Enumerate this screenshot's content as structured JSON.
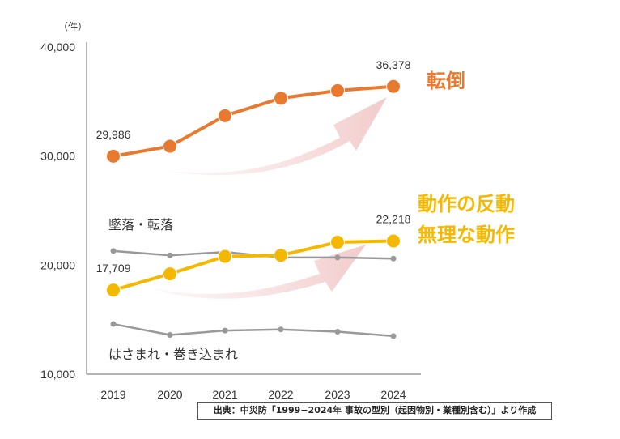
{
  "chart_data": {
    "type": "line",
    "unit_label": "（件）",
    "x": [
      "2019",
      "2020",
      "2021",
      "2022",
      "2023",
      "2024"
    ],
    "ylim": [
      10000,
      40000
    ],
    "yticks": [
      "10,000",
      "20,000",
      "30,000",
      "40,000"
    ],
    "ytick_values": [
      10000,
      20000,
      30000,
      40000
    ],
    "grid": false,
    "series": [
      {
        "name": "転倒",
        "color": "#E87A30",
        "emphasis": true,
        "values": [
          29986,
          30900,
          33700,
          35300,
          36000,
          36378
        ],
        "labels": [
          {
            "index": 0,
            "text": "29,986"
          },
          {
            "index": 5,
            "text": "36,378"
          }
        ]
      },
      {
        "name": "墜落・転落",
        "color": "#999999",
        "emphasis": false,
        "values": [
          21300,
          20900,
          21200,
          20700,
          20700,
          20600
        ],
        "labels": []
      },
      {
        "name": "動作の反動\n無理な動作",
        "color": "#F5B800",
        "emphasis": true,
        "values": [
          17709,
          19200,
          20800,
          20900,
          22100,
          22218
        ],
        "labels": [
          {
            "index": 0,
            "text": "17,709"
          },
          {
            "index": 5,
            "text": "22,218"
          }
        ]
      },
      {
        "name": "はさまれ・巻き込まれ",
        "color": "#999999",
        "emphasis": false,
        "values": [
          14600,
          13600,
          14000,
          14100,
          13900,
          13500
        ],
        "labels": []
      }
    ],
    "source": "出典：中災防「1999−2024年 事故の型別（起因物別・業種別含む）」より作成"
  }
}
